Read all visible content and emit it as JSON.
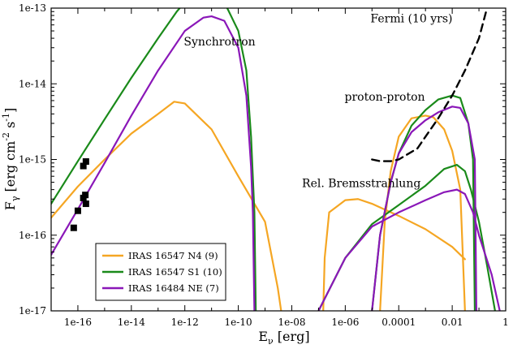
{
  "chart_data": {
    "type": "line",
    "xlabel": "E",
    "xlabel_sub": "ν",
    "xlabel_unit": " [erg]",
    "ylabel": "F",
    "ylabel_sub": "γ",
    "ylabel_unit": " [erg cm",
    "ylabel_unit_exp1": "-2",
    "ylabel_unit_s": " s",
    "ylabel_unit_exp2": "-1",
    "ylabel_close": "]",
    "xscale": "log",
    "yscale": "log",
    "xlim": [
      1e-17,
      1
    ],
    "ylim": [
      1e-17,
      1e-13
    ],
    "x_ticks": [
      {
        "value": 1e-16,
        "label": "1e-16"
      },
      {
        "value": 1e-14,
        "label": "1e-14"
      },
      {
        "value": 1e-12,
        "label": "1e-12"
      },
      {
        "value": 1e-10,
        "label": "1e-10"
      },
      {
        "value": 1e-08,
        "label": "1e-08"
      },
      {
        "value": 1e-06,
        "label": "1e-06"
      },
      {
        "value": 0.0001,
        "label": "0.0001"
      },
      {
        "value": 0.01,
        "label": "0.01"
      },
      {
        "value": 1,
        "label": "1"
      }
    ],
    "y_ticks": [
      {
        "value": 1e-17,
        "label": "1e-17"
      },
      {
        "value": 1e-16,
        "label": "1e-16"
      },
      {
        "value": 1e-15,
        "label": "1e-15"
      },
      {
        "value": 1e-14,
        "label": "1e-14"
      },
      {
        "value": 1e-13,
        "label": "1e-13"
      }
    ],
    "annotations": [
      {
        "text": "Synchrotron",
        "x": 2e-11,
        "y": 3.2e-14
      },
      {
        "text": "Fermi (10 yrs)",
        "x": 0.0003,
        "y": 6.5e-14
      },
      {
        "text": "proton-proton",
        "x": 3e-05,
        "y": 6e-15
      },
      {
        "text": "Rel. Bremsstrahlung",
        "x": 4e-06,
        "y": 4.3e-16
      }
    ],
    "series": [
      {
        "name": "IRAS 16547 N4 (9)",
        "color": "#f5a623",
        "components": [
          {
            "points": [
              [
                1e-17,
                1.7e-16
              ],
              [
                1e-16,
                4.4e-16
              ],
              [
                1e-15,
                1e-15
              ],
              [
                1e-14,
                2.2e-15
              ],
              [
                1e-13,
                4e-15
              ],
              [
                4e-13,
                5.8e-15
              ],
              [
                1e-12,
                5.5e-15
              ],
              [
                1e-11,
                2.5e-15
              ],
              [
                1e-10,
                6e-16
              ],
              [
                1e-09,
                1.5e-16
              ],
              [
                3e-09,
                2e-17
              ],
              [
                4e-09,
                1e-17
              ]
            ]
          },
          {
            "points": [
              [
                1.5e-07,
                1e-17
              ],
              [
                1.7e-07,
                5e-17
              ],
              [
                2.5e-07,
                2e-16
              ],
              [
                1e-06,
                2.9e-16
              ],
              [
                3e-06,
                3e-16
              ],
              [
                1e-05,
                2.6e-16
              ],
              [
                0.0001,
                1.8e-16
              ],
              [
                0.001,
                1.2e-16
              ],
              [
                0.01,
                7e-17
              ],
              [
                0.03,
                4.8e-17
              ]
            ]
          },
          {
            "points": [
              [
                2e-05,
                1e-17
              ],
              [
                3e-05,
                1.5e-16
              ],
              [
                5e-05,
                7e-16
              ],
              [
                0.0001,
                2e-15
              ],
              [
                0.0003,
                3.5e-15
              ],
              [
                0.001,
                3.8e-15
              ],
              [
                0.002,
                3.6e-15
              ],
              [
                0.005,
                2.5e-15
              ],
              [
                0.01,
                1.3e-15
              ],
              [
                0.02,
                4e-16
              ],
              [
                0.03,
                1e-17
              ]
            ]
          }
        ]
      },
      {
        "name": "IRAS 16547 S1 (10)",
        "color": "#1a8a1a",
        "components": [
          {
            "points": [
              [
                1e-17,
                2.6e-16
              ],
              [
                1e-16,
                9.5e-16
              ],
              [
                1e-15,
                3.4e-15
              ],
              [
                1e-14,
                1.2e-14
              ],
              [
                1e-13,
                4e-14
              ],
              [
                5e-13,
                9e-14
              ],
              [
                1e-12,
                1.2e-13
              ],
              [
                1e-11,
                1.5e-13
              ],
              [
                3e-11,
                1.2e-13
              ],
              [
                1e-10,
                5e-14
              ],
              [
                2e-10,
                1.5e-14
              ],
              [
                3e-10,
                2e-15
              ],
              [
                4e-10,
                2e-16
              ],
              [
                4.5e-10,
                1e-17
              ]
            ]
          },
          {
            "points": [
              [
                1e-07,
                1e-17
              ],
              [
                1e-06,
                5e-17
              ],
              [
                1e-05,
                1.4e-16
              ],
              [
                0.0001,
                2.5e-16
              ],
              [
                0.001,
                4.5e-16
              ],
              [
                0.005,
                7.5e-16
              ],
              [
                0.015,
                8.5e-16
              ],
              [
                0.03,
                7e-16
              ],
              [
                0.05,
                4e-16
              ],
              [
                0.1,
                1.5e-16
              ],
              [
                0.2,
                4e-17
              ],
              [
                0.4,
                1e-17
              ]
            ]
          },
          {
            "points": [
              [
                1e-05,
                1e-17
              ],
              [
                2e-05,
                1e-16
              ],
              [
                5e-05,
                5e-16
              ],
              [
                0.0001,
                1.2e-15
              ],
              [
                0.0003,
                2.8e-15
              ],
              [
                0.001,
                4.5e-15
              ],
              [
                0.003,
                6.2e-15
              ],
              [
                0.01,
                7e-15
              ],
              [
                0.02,
                6.5e-15
              ],
              [
                0.04,
                3e-15
              ],
              [
                0.06,
                1e-15
              ],
              [
                0.07,
                1e-17
              ]
            ]
          }
        ]
      },
      {
        "name": "IRAS 16484 NE (7)",
        "color": "#8a17b8",
        "components": [
          {
            "points": [
              [
                1e-17,
                5.5e-17
              ],
              [
                1e-16,
                2.2e-16
              ],
              [
                1e-15,
                9e-16
              ],
              [
                1e-14,
                3.8e-15
              ],
              [
                1e-13,
                1.5e-14
              ],
              [
                1e-12,
                5e-14
              ],
              [
                5e-12,
                7.5e-14
              ],
              [
                1e-11,
                7.8e-14
              ],
              [
                3e-11,
                6.8e-14
              ],
              [
                1e-10,
                3e-14
              ],
              [
                2e-10,
                7e-15
              ],
              [
                3e-10,
                8e-16
              ],
              [
                3.5e-10,
                2e-16
              ],
              [
                4e-10,
                1e-17
              ]
            ]
          },
          {
            "points": [
              [
                1e-07,
                1e-17
              ],
              [
                1e-06,
                5e-17
              ],
              [
                1e-05,
                1.3e-16
              ],
              [
                0.0001,
                2e-16
              ],
              [
                0.001,
                2.9e-16
              ],
              [
                0.005,
                3.7e-16
              ],
              [
                0.015,
                4e-16
              ],
              [
                0.03,
                3.5e-16
              ],
              [
                0.06,
                2e-16
              ],
              [
                0.1,
                1e-16
              ],
              [
                0.3,
                3e-17
              ],
              [
                0.6,
                1e-17
              ]
            ]
          },
          {
            "points": [
              [
                1e-05,
                1e-17
              ],
              [
                2e-05,
                1e-16
              ],
              [
                5e-05,
                5e-16
              ],
              [
                0.0001,
                1.2e-15
              ],
              [
                0.0003,
                2.3e-15
              ],
              [
                0.001,
                3.3e-15
              ],
              [
                0.003,
                4.2e-15
              ],
              [
                0.01,
                5e-15
              ],
              [
                0.02,
                4.8e-15
              ],
              [
                0.04,
                3e-15
              ],
              [
                0.07,
                1e-15
              ],
              [
                0.08,
                1e-17
              ]
            ]
          }
        ]
      },
      {
        "name": "Fermi (10 yrs)",
        "color": "#000000",
        "dash": true,
        "show_legend": false,
        "components": [
          {
            "points": [
              [
                1e-05,
                1e-15
              ],
              [
                2e-05,
                9.5e-16
              ],
              [
                5e-05,
                9.5e-16
              ],
              [
                0.0001,
                1e-15
              ],
              [
                0.0005,
                1.4e-15
              ],
              [
                0.001,
                2e-15
              ],
              [
                0.003,
                3.5e-15
              ],
              [
                0.01,
                7e-15
              ],
              [
                0.03,
                1.5e-14
              ],
              [
                0.1,
                4e-14
              ],
              [
                0.2,
                1e-13
              ]
            ]
          }
        ]
      }
    ],
    "data_points": [
      {
        "x": 7e-17,
        "y": 1.25e-16
      },
      {
        "x": 1e-16,
        "y": 2.1e-16
      },
      {
        "x": 1.6e-16,
        "y": 3.1e-16
      },
      {
        "x": 1.9e-16,
        "y": 3.4e-16
      },
      {
        "x": 2e-16,
        "y": 2.6e-16
      },
      {
        "x": 1.6e-16,
        "y": 8.2e-16
      },
      {
        "x": 2e-16,
        "y": 9.4e-16
      }
    ],
    "legend": {
      "placement": "bottom-left",
      "frame": true
    }
  }
}
